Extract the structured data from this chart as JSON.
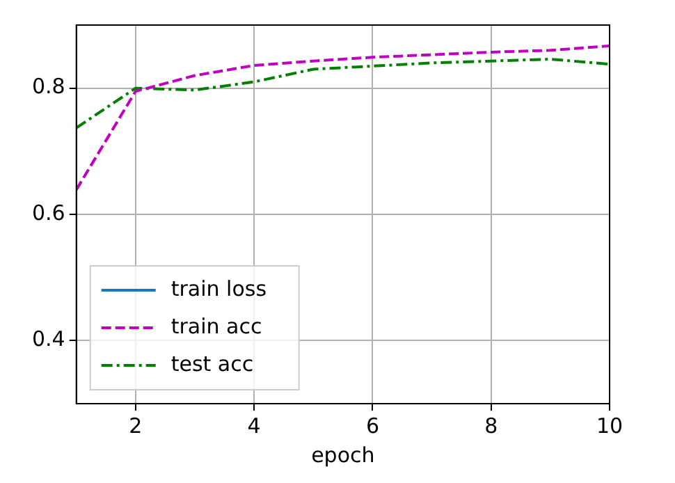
{
  "chart_data": {
    "type": "line",
    "xlabel": "epoch",
    "x": [
      1,
      2,
      3,
      4,
      5,
      6,
      7,
      8,
      9,
      10
    ],
    "series": [
      {
        "name": "train loss",
        "color": "#1f77b4",
        "line_style": "solid",
        "values": [
          null,
          null,
          null,
          null,
          null,
          null,
          null,
          null,
          null,
          null
        ]
      },
      {
        "name": "train acc",
        "color": "#bf00bf",
        "line_style": "dashed",
        "values": [
          0.639,
          0.795,
          0.82,
          0.836,
          0.843,
          0.849,
          0.853,
          0.857,
          0.86,
          0.867
        ]
      },
      {
        "name": "test acc",
        "color": "#008000",
        "line_style": "dashdot",
        "values": [
          0.737,
          0.8,
          0.797,
          0.81,
          0.83,
          0.835,
          0.84,
          0.843,
          0.846,
          0.838
        ]
      }
    ],
    "xlim": [
      1,
      10
    ],
    "xticks": [
      2,
      4,
      6,
      8,
      10
    ],
    "ylim": [
      0.3,
      0.9
    ],
    "yticks": [
      0.4,
      0.6,
      0.8
    ],
    "grid": true,
    "legend": "bottom left",
    "marker": "none"
  }
}
